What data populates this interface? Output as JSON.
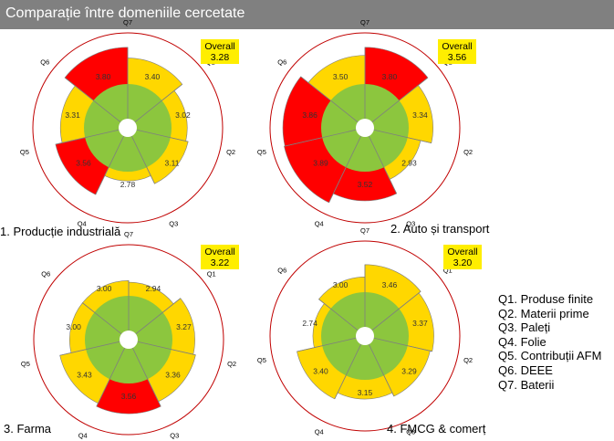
{
  "header": {
    "title": "Comparație între domeniile cercetate"
  },
  "colors": {
    "ring": "#c00000",
    "inner": "#8cc63e",
    "red": "#ff0000",
    "yellow": "#ffd700",
    "overall_bg": "#ffee00",
    "spoke": "#7f7f7f"
  },
  "legend": {
    "items": [
      "Q1. Produse finite",
      "Q2. Materii prime",
      "Q3. Paleți",
      "Q4. Folie",
      "Q5. Contribuții AFM",
      "Q6. DEEE",
      "Q7. Baterii"
    ]
  },
  "chart_data": [
    {
      "type": "radial-bar",
      "title": "1. Producție industrială",
      "overall_label": "Overall",
      "overall_value": "3.28",
      "axes": [
        "Q1",
        "Q2",
        "Q3",
        "Q4",
        "Q5",
        "Q6",
        "Q7"
      ],
      "values": [
        3.4,
        3.02,
        3.11,
        2.78,
        3.56,
        3.31,
        3.8
      ],
      "highlight": [
        "yellow",
        "yellow",
        "yellow",
        "yellow",
        "red",
        "yellow",
        "red"
      ]
    },
    {
      "type": "radial-bar",
      "title": "2. Auto și transport",
      "overall_label": "Overall",
      "overall_value": "3.56",
      "axes": [
        "Q1",
        "Q2",
        "Q3",
        "Q4",
        "Q5",
        "Q6",
        "Q7"
      ],
      "values": [
        3.8,
        3.34,
        2.93,
        3.52,
        3.89,
        3.86,
        3.5
      ],
      "highlight": [
        "red",
        "yellow",
        "yellow",
        "red",
        "red",
        "red",
        "yellow"
      ]
    },
    {
      "type": "radial-bar",
      "title": "3. Farma",
      "overall_label": "Overall",
      "overall_value": "3.22",
      "axes": [
        "Q1",
        "Q2",
        "Q3",
        "Q4",
        "Q5",
        "Q6",
        "Q7"
      ],
      "values": [
        2.94,
        3.27,
        3.36,
        3.56,
        3.43,
        3.0,
        3.0
      ],
      "highlight": [
        "yellow",
        "yellow",
        "yellow",
        "red",
        "yellow",
        "yellow",
        "yellow"
      ]
    },
    {
      "type": "radial-bar",
      "title": "4. FMCG & comerț",
      "overall_label": "Overall",
      "overall_value": "3.20",
      "axes": [
        "Q1",
        "Q2",
        "Q3",
        "Q4",
        "Q5",
        "Q6",
        "Q7"
      ],
      "values": [
        3.46,
        3.37,
        3.29,
        3.15,
        3.4,
        2.74,
        3.0
      ],
      "highlight": [
        "yellow",
        "yellow",
        "yellow",
        "yellow",
        "yellow",
        "yellow",
        "yellow"
      ]
    }
  ]
}
